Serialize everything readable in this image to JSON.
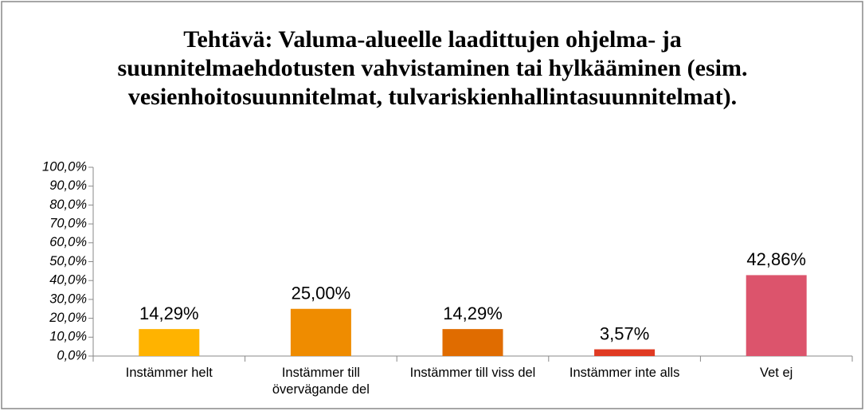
{
  "chart_data": {
    "type": "bar",
    "title": "Tehtävä: Valuma-alueelle laadittujen ohjelma- ja suunnitelmaehdotusten vahvistaminen tai hylkääminen (esim. vesienhoitosuunnitelmat, tulvariskienhallintasuunnitelmat).",
    "categories": [
      "Instämmer helt",
      "Instämmer till övervägande del",
      "Instämmer till viss del",
      "Instämmer inte alls",
      "Vet ej"
    ],
    "values": [
      14.29,
      25.0,
      14.29,
      3.57,
      42.86
    ],
    "value_labels": [
      "14,29%",
      "25,00%",
      "14,29%",
      "3,57%",
      "42,86%"
    ],
    "colors": [
      "#ffb300",
      "#ef8c00",
      "#e06c00",
      "#e03a22",
      "#dc546c"
    ],
    "ylim": [
      0,
      100
    ],
    "yticks": [
      {
        "value": 0,
        "label": "0,0%"
      },
      {
        "value": 10,
        "label": "10,0%"
      },
      {
        "value": 20,
        "label": "20,0%"
      },
      {
        "value": 30,
        "label": "30,0%"
      },
      {
        "value": 40,
        "label": "40,0%"
      },
      {
        "value": 50,
        "label": "50,0%"
      },
      {
        "value": 60,
        "label": "60,0%"
      },
      {
        "value": 70,
        "label": "70,0%"
      },
      {
        "value": 80,
        "label": "80,0%"
      },
      {
        "value": 90,
        "label": "90,0%"
      },
      {
        "value": 100,
        "label": "100,0%"
      }
    ],
    "grid": false
  }
}
